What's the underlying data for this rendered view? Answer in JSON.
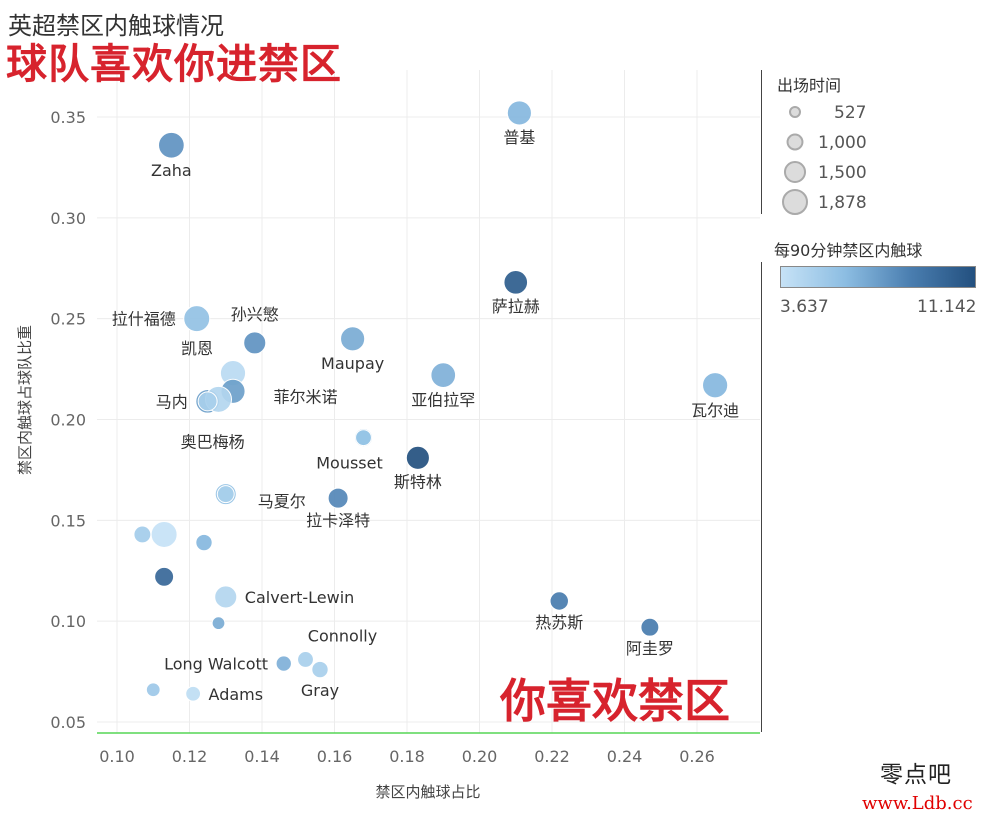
{
  "chart_data": {
    "type": "scatter",
    "title": "英超禁区内触球情况",
    "subtitle": "球队喜欢你进禁区",
    "annotation": "你喜欢禁区",
    "xlabel": "禁区内触球占比",
    "ylabel": "禁区内触球占球队比重",
    "xlim": [
      0.095,
      0.275
    ],
    "ylim": [
      0.045,
      0.365
    ],
    "x_ticks": [
      "0.10",
      "0.12",
      "0.14",
      "0.16",
      "0.18",
      "0.20",
      "0.22",
      "0.24",
      "0.26"
    ],
    "y_ticks": [
      "0.05",
      "0.10",
      "0.15",
      "0.20",
      "0.25",
      "0.30",
      "0.35"
    ],
    "grid": true,
    "size_legend": {
      "title": "出场时间",
      "entries": [
        {
          "label": "527",
          "value": 527
        },
        {
          "label": "1,000",
          "value": 1000
        },
        {
          "label": "1,500",
          "value": 1500
        },
        {
          "label": "1,878",
          "value": 1878
        }
      ]
    },
    "color_legend": {
      "title": "每90分钟禁区内触球",
      "min_label": "3.637",
      "max_label": "11.142",
      "min": 3.637,
      "max": 11.142
    },
    "points": [
      {
        "label": "普基",
        "x": 0.211,
        "y": 0.352,
        "minutes": 1700,
        "touches": 6.5,
        "label_pos": "below"
      },
      {
        "label": "Zaha",
        "x": 0.115,
        "y": 0.336,
        "minutes": 1850,
        "touches": 8.0,
        "label_pos": "below"
      },
      {
        "label": "萨拉赫",
        "x": 0.21,
        "y": 0.268,
        "minutes": 1650,
        "touches": 10.5,
        "label_pos": "below"
      },
      {
        "label": "拉什福德",
        "x": 0.122,
        "y": 0.25,
        "minutes": 1878,
        "touches": 6.0,
        "label_pos": "left"
      },
      {
        "label": "孙兴慜",
        "x": 0.138,
        "y": 0.238,
        "minutes": 1500,
        "touches": 8.0,
        "label_pos": "above"
      },
      {
        "label": "Maupay",
        "x": 0.165,
        "y": 0.24,
        "minutes": 1700,
        "touches": 7.0,
        "label_pos": "below"
      },
      {
        "label": "凯恩",
        "x": 0.132,
        "y": 0.223,
        "minutes": 1800,
        "touches": 4.2,
        "label_pos": "above-left"
      },
      {
        "label": "亚伯拉罕",
        "x": 0.19,
        "y": 0.222,
        "minutes": 1750,
        "touches": 6.8,
        "label_pos": "below"
      },
      {
        "label": "瓦尔迪",
        "x": 0.265,
        "y": 0.217,
        "minutes": 1800,
        "touches": 6.5,
        "label_pos": "below"
      },
      {
        "label": "",
        "x": 0.132,
        "y": 0.214,
        "minutes": 1700,
        "touches": 7.5,
        "label_pos": "none"
      },
      {
        "label": "马内",
        "x": 0.125,
        "y": 0.209,
        "minutes": 1650,
        "touches": 7.5,
        "label_pos": "left"
      },
      {
        "label": "菲尔米诺",
        "x": 0.128,
        "y": 0.21,
        "minutes": 1878,
        "touches": 4.5,
        "label_pos": "right"
      },
      {
        "label": "奥巴梅杨",
        "x": 0.125,
        "y": 0.209,
        "minutes": 1200,
        "touches": 5.0,
        "label_pos": "below"
      },
      {
        "label": "",
        "x": 0.168,
        "y": 0.191,
        "minutes": 1100,
        "touches": 6.0,
        "label_pos": "none"
      },
      {
        "label": "Mousset",
        "x": 0.168,
        "y": 0.191,
        "minutes": 900,
        "touches": 5.8,
        "label_pos": "below-left"
      },
      {
        "label": "斯特林",
        "x": 0.183,
        "y": 0.181,
        "minutes": 1600,
        "touches": 11.142,
        "label_pos": "below"
      },
      {
        "label": "",
        "x": 0.13,
        "y": 0.163,
        "minutes": 1400,
        "touches": 6.0,
        "label_pos": "none"
      },
      {
        "label": "马夏尔",
        "x": 0.13,
        "y": 0.163,
        "minutes": 1000,
        "touches": 5.0,
        "label_pos": "right"
      },
      {
        "label": "拉卡泽特",
        "x": 0.161,
        "y": 0.161,
        "minutes": 1300,
        "touches": 8.5,
        "label_pos": "below"
      },
      {
        "label": "",
        "x": 0.107,
        "y": 0.143,
        "minutes": 1000,
        "touches": 5.2,
        "label_pos": "none"
      },
      {
        "label": "",
        "x": 0.113,
        "y": 0.143,
        "minutes": 1878,
        "touches": 3.637,
        "label_pos": "none"
      },
      {
        "label": "",
        "x": 0.124,
        "y": 0.139,
        "minutes": 950,
        "touches": 6.5,
        "label_pos": "none"
      },
      {
        "label": "",
        "x": 0.113,
        "y": 0.122,
        "minutes": 1200,
        "touches": 10.0,
        "label_pos": "none"
      },
      {
        "label": "Calvert-Lewin",
        "x": 0.13,
        "y": 0.112,
        "minutes": 1500,
        "touches": 4.5,
        "label_pos": "right"
      },
      {
        "label": "热苏斯",
        "x": 0.222,
        "y": 0.11,
        "minutes": 1150,
        "touches": 9.0,
        "label_pos": "below"
      },
      {
        "label": "阿圭罗",
        "x": 0.247,
        "y": 0.097,
        "minutes": 1100,
        "touches": 9.0,
        "label_pos": "below"
      },
      {
        "label": "",
        "x": 0.128,
        "y": 0.099,
        "minutes": 600,
        "touches": 7.0,
        "label_pos": "none"
      },
      {
        "label": "Connolly",
        "x": 0.152,
        "y": 0.081,
        "minutes": 900,
        "touches": 5.0,
        "label_pos": "above-right"
      },
      {
        "label": "Long Walcott",
        "x": 0.146,
        "y": 0.079,
        "minutes": 850,
        "touches": 6.8,
        "label_pos": "left"
      },
      {
        "label": "Gray",
        "x": 0.156,
        "y": 0.076,
        "minutes": 950,
        "touches": 5.0,
        "label_pos": "below"
      },
      {
        "label": "",
        "x": 0.11,
        "y": 0.066,
        "minutes": 700,
        "touches": 5.5,
        "label_pos": "none"
      },
      {
        "label": "Adams",
        "x": 0.121,
        "y": 0.064,
        "minutes": 800,
        "touches": 4.0,
        "label_pos": "right"
      }
    ]
  },
  "watermark": {
    "line1": "零点吧",
    "line2": "www.Ldb.cc"
  }
}
